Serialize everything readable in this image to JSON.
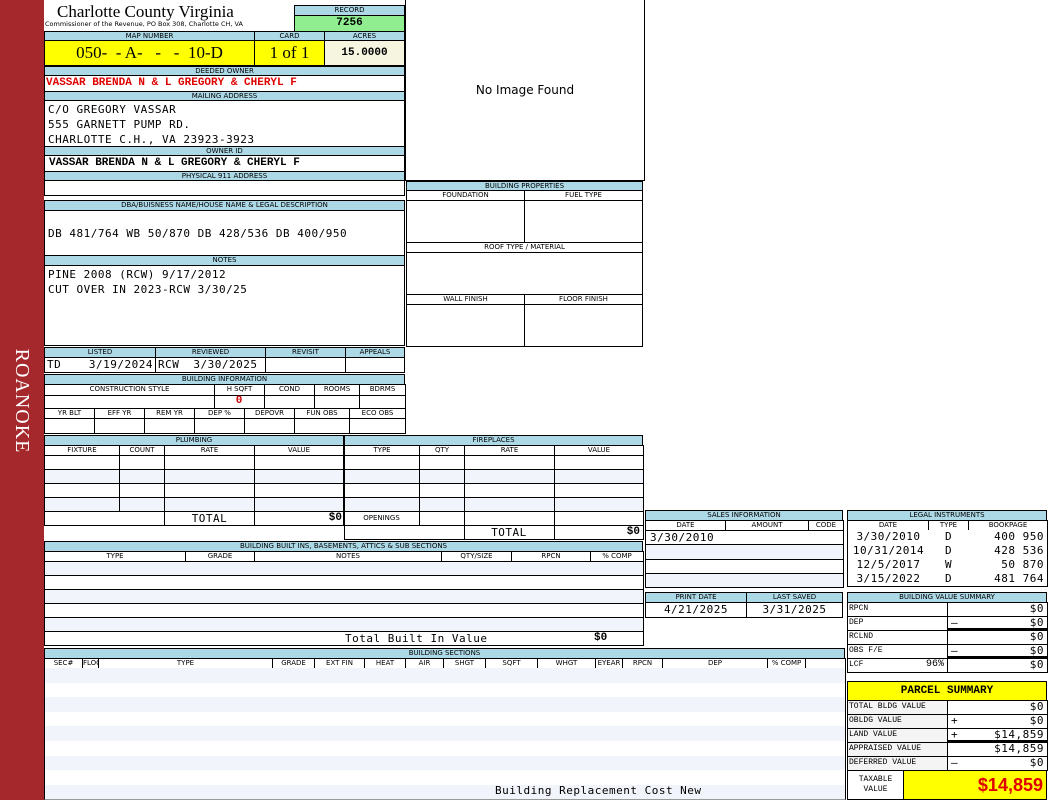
{
  "side_label": "ROANOKE",
  "header": {
    "title": "Charlotte County Virginia",
    "subtitle": "Commissioner of the Revenue, PO Box 308, Charlotte CH, VA"
  },
  "record": {
    "label": "RECORD",
    "value": "7256"
  },
  "map": {
    "label": "MAP NUMBER",
    "value": "050-  - A-   -   -  10-D",
    "card_label": "CARD",
    "card": "1 of 1",
    "acres_label": "ACRES",
    "acres": "15.0000"
  },
  "deeded_owner": {
    "label": "DEEDED OWNER",
    "value": "VASSAR BRENDA N & L GREGORY & CHERYL F"
  },
  "mailing": {
    "label": "MAILING ADDRESS",
    "lines": [
      "C/O GREGORY VASSAR",
      "555 GARNETT PUMP RD.",
      "CHARLOTTE C.H., VA 23923-3923"
    ]
  },
  "owner_id": {
    "label": "OWNER ID",
    "value": "VASSAR BRENDA N & L GREGORY & CHERYL F"
  },
  "physical": {
    "label": "PHYSICAL 911 ADDRESS",
    "value": ""
  },
  "image": {
    "text": "No Image Found"
  },
  "building_properties": {
    "label": "BUILDING PROPERTIES",
    "foundation": "FOUNDATION",
    "fuel": "FUEL TYPE",
    "roof": "ROOF TYPE / MATERIAL",
    "wall": "WALL FINISH",
    "floor": "FLOOR FINISH"
  },
  "dba": {
    "label": "DBA/BUISNESS NAME/HOUSE NAME & LEGAL DESCRIPTION",
    "value": "DB 481/764 WB 50/870 DB 428/536 DB 400/950"
  },
  "notes": {
    "label": "NOTES",
    "lines": [
      "PINE 2008 (RCW) 9/17/2012",
      "CUT OVER IN 2023-RCW 3/30/25"
    ]
  },
  "listing": {
    "listed": "LISTED",
    "reviewed": "REVIEWED",
    "revisit": "REVISIT",
    "appeals": "APPEALS",
    "listed_by": "TD",
    "listed_date": "3/19/2024",
    "reviewed_by": "RCW",
    "reviewed_date": "3/30/2025"
  },
  "building_info": {
    "label": "BUILDING INFORMATION",
    "cols1": [
      "CONSTRUCTION STYLE",
      "H SQFT",
      "COND",
      "ROOMS",
      "BDRMS"
    ],
    "hsqft": "0",
    "cols2": [
      "YR BLT",
      "EFF YR",
      "REM YR",
      "DEP %",
      "DEPOVR",
      "FUN OBS",
      "ECO OBS"
    ]
  },
  "plumbing": {
    "label": "PLUMBING",
    "cols": [
      "FIXTURE",
      "COUNT",
      "RATE",
      "VALUE"
    ],
    "total_label": "TOTAL",
    "total": "$0"
  },
  "fireplaces": {
    "label": "FIREPLACES",
    "cols": [
      "TYPE",
      "QTY",
      "RATE",
      "VALUE"
    ],
    "openings": "OPENINGS",
    "total_label": "TOTAL",
    "total": "$0"
  },
  "built_ins": {
    "label": "BUILDING BUILT INS, BASEMENTS, ATTICS & SUB SECTIONS",
    "cols": [
      "TYPE",
      "GRADE",
      "NOTES",
      "QTY/SIZE",
      "RPCN",
      "% COMP"
    ],
    "total_label": "Total Built In Value",
    "total": "$0"
  },
  "sections": {
    "label": "BUILDING SECTIONS",
    "cols": [
      "SEC#",
      "FLOOR",
      "TYPE",
      "GRADE",
      "EXT FIN",
      "HEAT",
      "AIR",
      "SHGT",
      "SQFT",
      "WHGT",
      "EYEAR",
      "RPCN",
      "DEP",
      "% COMP"
    ],
    "footer": "Building Replacement Cost New"
  },
  "sales": {
    "label": "SALES INFORMATION",
    "cols": [
      "DATE",
      "AMOUNT",
      "CODE"
    ],
    "rows": [
      [
        "3/30/2010",
        "",
        ""
      ]
    ]
  },
  "dates": {
    "print_label": "PRINT DATE",
    "print": "4/21/2025",
    "saved_label": "LAST SAVED",
    "saved": "3/31/2025"
  },
  "legal": {
    "label": "LEGAL INSTRUMENTS",
    "cols": [
      "DATE",
      "TYPE",
      "BOOKPAGE"
    ],
    "rows": [
      [
        "3/30/2010",
        "D",
        "400 950"
      ],
      [
        "10/31/2014",
        "D",
        "428 536"
      ],
      [
        "12/5/2017",
        "W",
        "50 870"
      ],
      [
        "3/15/2022",
        "D",
        "481 764"
      ]
    ]
  },
  "bvs": {
    "label": "BUILDING VALUE SUMMARY",
    "rows": [
      {
        "k": "RPCN",
        "op": "",
        "v": "$0"
      },
      {
        "k": "DEP",
        "op": "–",
        "v": "$0"
      },
      {
        "k": "RCLND",
        "op": "",
        "v": "$0"
      },
      {
        "k": "OBS F/E",
        "op": "–",
        "v": "$0"
      },
      {
        "k": "LCF",
        "pct": "96%",
        "op": "",
        "v": "$0"
      }
    ]
  },
  "parcel": {
    "label": "PARCEL SUMMARY",
    "rows": [
      {
        "k": "TOTAL BLDG VALUE",
        "op": "",
        "v": "$0"
      },
      {
        "k": "OBLDG VALUE",
        "op": "+",
        "v": "$0"
      },
      {
        "k": "LAND VALUE",
        "op": "+",
        "v": "$14,859"
      },
      {
        "k": "APPRAISED VALUE",
        "op": "",
        "v": "$14,859"
      },
      {
        "k": "DEFERRED VALUE",
        "op": "–",
        "v": "$0"
      }
    ],
    "taxable_label": "TAXABLE VALUE",
    "taxable": "$14,859"
  },
  "colors": {
    "side": "#a4282c",
    "header": "#add8e6",
    "record": "#90ee90",
    "highlight": "#ffff00",
    "owner": "#e00000"
  }
}
